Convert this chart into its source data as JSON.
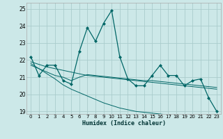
{
  "title": "",
  "xlabel": "Humidex (Indice chaleur)",
  "background_color": "#cce8e8",
  "grid_color": "#aacccc",
  "line_color": "#006666",
  "xlim": [
    -0.5,
    23.5
  ],
  "ylim": [
    18.85,
    25.35
  ],
  "yticks": [
    19,
    20,
    21,
    22,
    23,
    24,
    25
  ],
  "xticks": [
    0,
    1,
    2,
    3,
    4,
    5,
    6,
    7,
    8,
    9,
    10,
    11,
    12,
    13,
    14,
    15,
    16,
    17,
    18,
    19,
    20,
    21,
    22,
    23
  ],
  "line1_x": [
    0,
    1,
    2,
    3,
    4,
    5,
    6,
    7,
    8,
    9,
    10,
    11,
    12,
    13,
    14,
    15,
    16,
    17,
    18,
    19,
    20,
    21,
    22,
    23
  ],
  "line1_y": [
    22.2,
    21.1,
    21.7,
    21.7,
    20.8,
    20.6,
    22.5,
    23.9,
    23.1,
    24.15,
    24.9,
    22.2,
    20.9,
    20.5,
    20.5,
    21.1,
    21.7,
    21.1,
    21.1,
    20.5,
    20.8,
    20.9,
    19.8,
    19.0
  ],
  "line2_x": [
    0,
    1,
    2,
    3,
    4,
    5,
    6,
    7,
    8,
    9,
    10,
    11,
    12,
    13,
    14,
    15,
    16,
    17,
    18,
    19,
    20,
    21,
    22,
    23
  ],
  "line2_y": [
    21.9,
    21.75,
    21.6,
    21.5,
    21.4,
    21.3,
    21.2,
    21.1,
    21.05,
    21.0,
    20.95,
    20.9,
    20.85,
    20.8,
    20.75,
    20.7,
    20.65,
    20.6,
    20.55,
    20.5,
    20.45,
    20.4,
    20.35,
    20.3
  ],
  "line3_x": [
    0,
    1,
    2,
    3,
    4,
    5,
    6,
    7,
    8,
    9,
    10,
    11,
    12,
    13,
    14,
    15,
    16,
    17,
    18,
    19,
    20,
    21,
    22,
    23
  ],
  "line3_y": [
    21.7,
    21.5,
    21.3,
    21.1,
    21.0,
    20.8,
    21.0,
    21.15,
    21.1,
    21.05,
    21.0,
    20.95,
    20.9,
    20.85,
    20.8,
    20.8,
    20.75,
    20.7,
    20.65,
    20.6,
    20.55,
    20.5,
    20.45,
    20.4
  ],
  "line4_x": [
    0,
    1,
    2,
    3,
    4,
    5,
    6,
    7,
    8,
    9,
    10,
    11,
    12,
    13,
    14,
    15,
    16,
    17,
    18,
    19,
    20,
    21,
    22,
    23
  ],
  "line4_y": [
    21.8,
    21.5,
    21.2,
    20.9,
    20.55,
    20.3,
    20.1,
    19.9,
    19.7,
    19.5,
    19.35,
    19.2,
    19.1,
    19.0,
    18.95,
    18.9,
    18.85,
    18.8,
    18.75,
    18.7,
    18.65,
    18.6,
    18.55,
    18.5
  ]
}
